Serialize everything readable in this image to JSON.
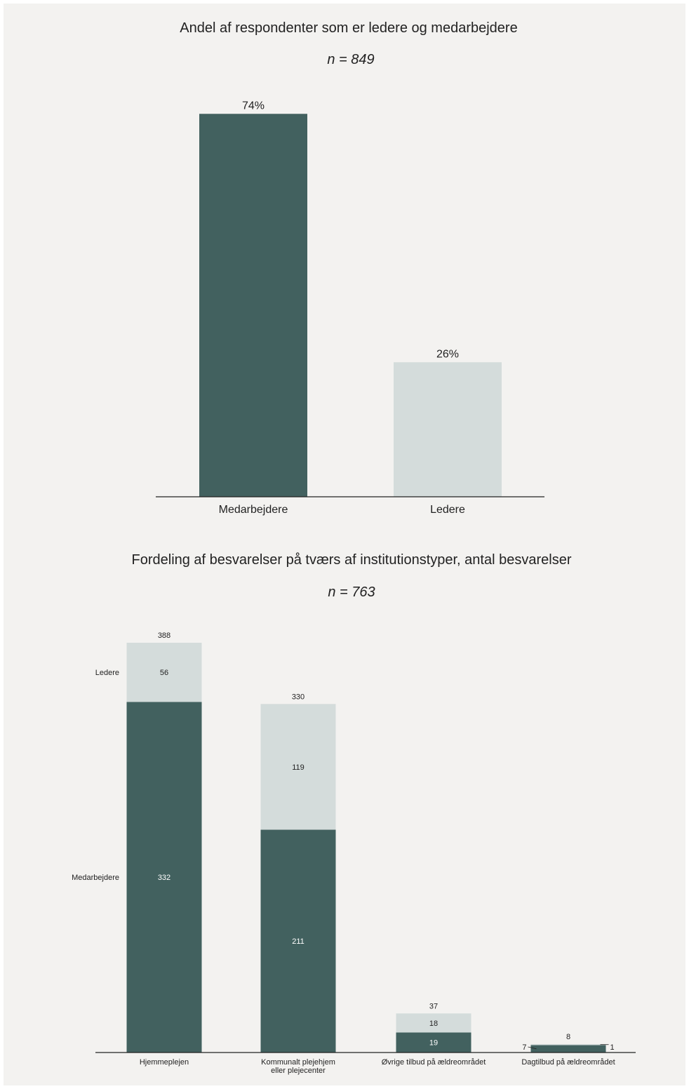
{
  "chart_data": [
    {
      "type": "bar",
      "title": "Andel af respondenter som er ledere og medarbejdere",
      "subtitle": "n = 849",
      "categories": [
        "Medarbejdere",
        "Ledere"
      ],
      "values": [
        74,
        26
      ],
      "value_labels": [
        "74%",
        "26%"
      ],
      "colors": [
        "#42615f",
        "#d4dcdb"
      ],
      "ylim": [
        0,
        80
      ],
      "grid": false,
      "legend": "none"
    },
    {
      "type": "bar",
      "stacked": true,
      "title": "Fordeling af besvarelser på tværs af institutionstyper, antal besvarelser",
      "subtitle": "n = 763",
      "categories": [
        "Hjemmeplejen",
        "Kommunalt plejehjem eller plejecenter",
        "Øvrige tilbud på ældreområdet",
        "Dagtilbud på ældreområdet"
      ],
      "category_lines": [
        [
          "Hjemmeplejen"
        ],
        [
          "Kommunalt plejehjem",
          "eller plejecenter"
        ],
        [
          "Øvrige tilbud på ældreområdet"
        ],
        [
          "Dagtilbud på ældreområdet"
        ]
      ],
      "series": [
        {
          "name": "Medarbejdere",
          "values": [
            332,
            211,
            19,
            7
          ],
          "color": "#42615f"
        },
        {
          "name": "Ledere",
          "values": [
            56,
            119,
            18,
            1
          ],
          "color": "#d4dcdb"
        }
      ],
      "totals": [
        388,
        330,
        37,
        8
      ],
      "ylim": [
        0,
        390
      ],
      "grid": false,
      "legend": "left"
    }
  ]
}
